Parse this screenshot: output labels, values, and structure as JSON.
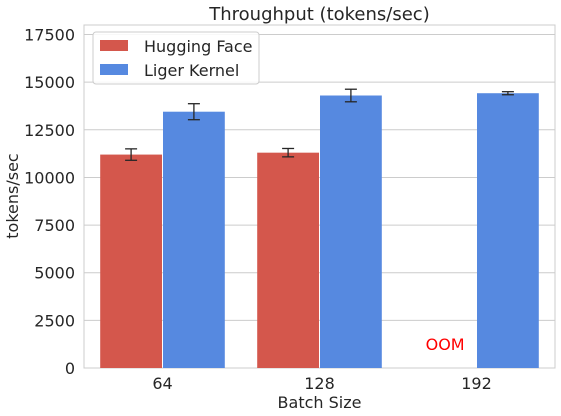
{
  "chart_data": {
    "type": "bar",
    "title": "Throughput (tokens/sec)",
    "xlabel": "Batch Size",
    "ylabel": "tokens/sec",
    "categories": [
      "64",
      "128",
      "192"
    ],
    "ylim": [
      0,
      18000
    ],
    "yticks": [
      0,
      2500,
      5000,
      7500,
      10000,
      12500,
      15000,
      17500
    ],
    "grid": true,
    "legend_position": "top-left",
    "series": [
      {
        "name": "Hugging Face",
        "color": "#d4574c",
        "values": [
          11200,
          11300,
          null
        ],
        "error": [
          300,
          220,
          null
        ]
      },
      {
        "name": "Liger Kernel",
        "color": "#5689e0",
        "values": [
          13450,
          14300,
          14420
        ],
        "error": [
          420,
          330,
          80
        ]
      }
    ],
    "annotations": [
      {
        "text": "OOM",
        "category": "192",
        "series": "Hugging Face",
        "color": "#ff0000"
      }
    ]
  }
}
